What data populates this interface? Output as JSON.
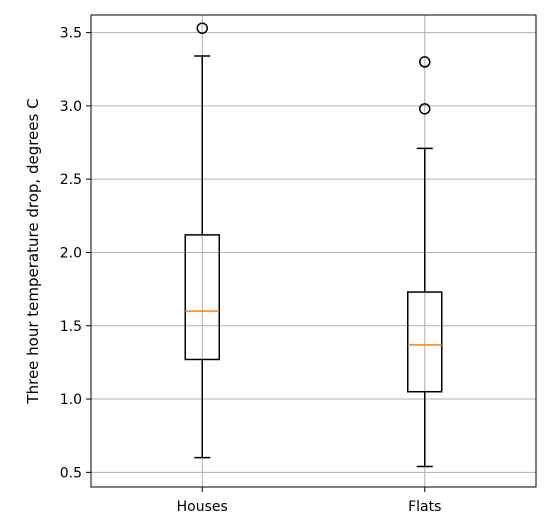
{
  "chart_data": {
    "type": "box",
    "title": "",
    "xlabel": "",
    "ylabel": "Three hour temperature drop, degrees C",
    "ylim": [
      0.4,
      3.62
    ],
    "yticks": [
      0.5,
      1.0,
      1.5,
      2.0,
      2.5,
      3.0,
      3.5
    ],
    "ytick_labels": [
      "0.5",
      "1.0",
      "1.5",
      "2.0",
      "2.5",
      "3.0",
      "3.5"
    ],
    "grid": true,
    "categories": [
      "Houses",
      "Flats"
    ],
    "boxes": [
      {
        "label": "Houses",
        "whisker_low": 0.6,
        "q1": 1.27,
        "median": 1.6,
        "q3": 2.12,
        "whisker_high": 3.34,
        "outliers": [
          3.53
        ]
      },
      {
        "label": "Flats",
        "whisker_low": 0.54,
        "q1": 1.05,
        "median": 1.37,
        "q3": 1.73,
        "whisker_high": 2.71,
        "outliers": [
          2.98,
          3.3
        ]
      }
    ],
    "colors": {
      "box": "#000000",
      "median": "#ff7f0e",
      "grid": "#b0b0b0",
      "axis": "#000000"
    }
  }
}
